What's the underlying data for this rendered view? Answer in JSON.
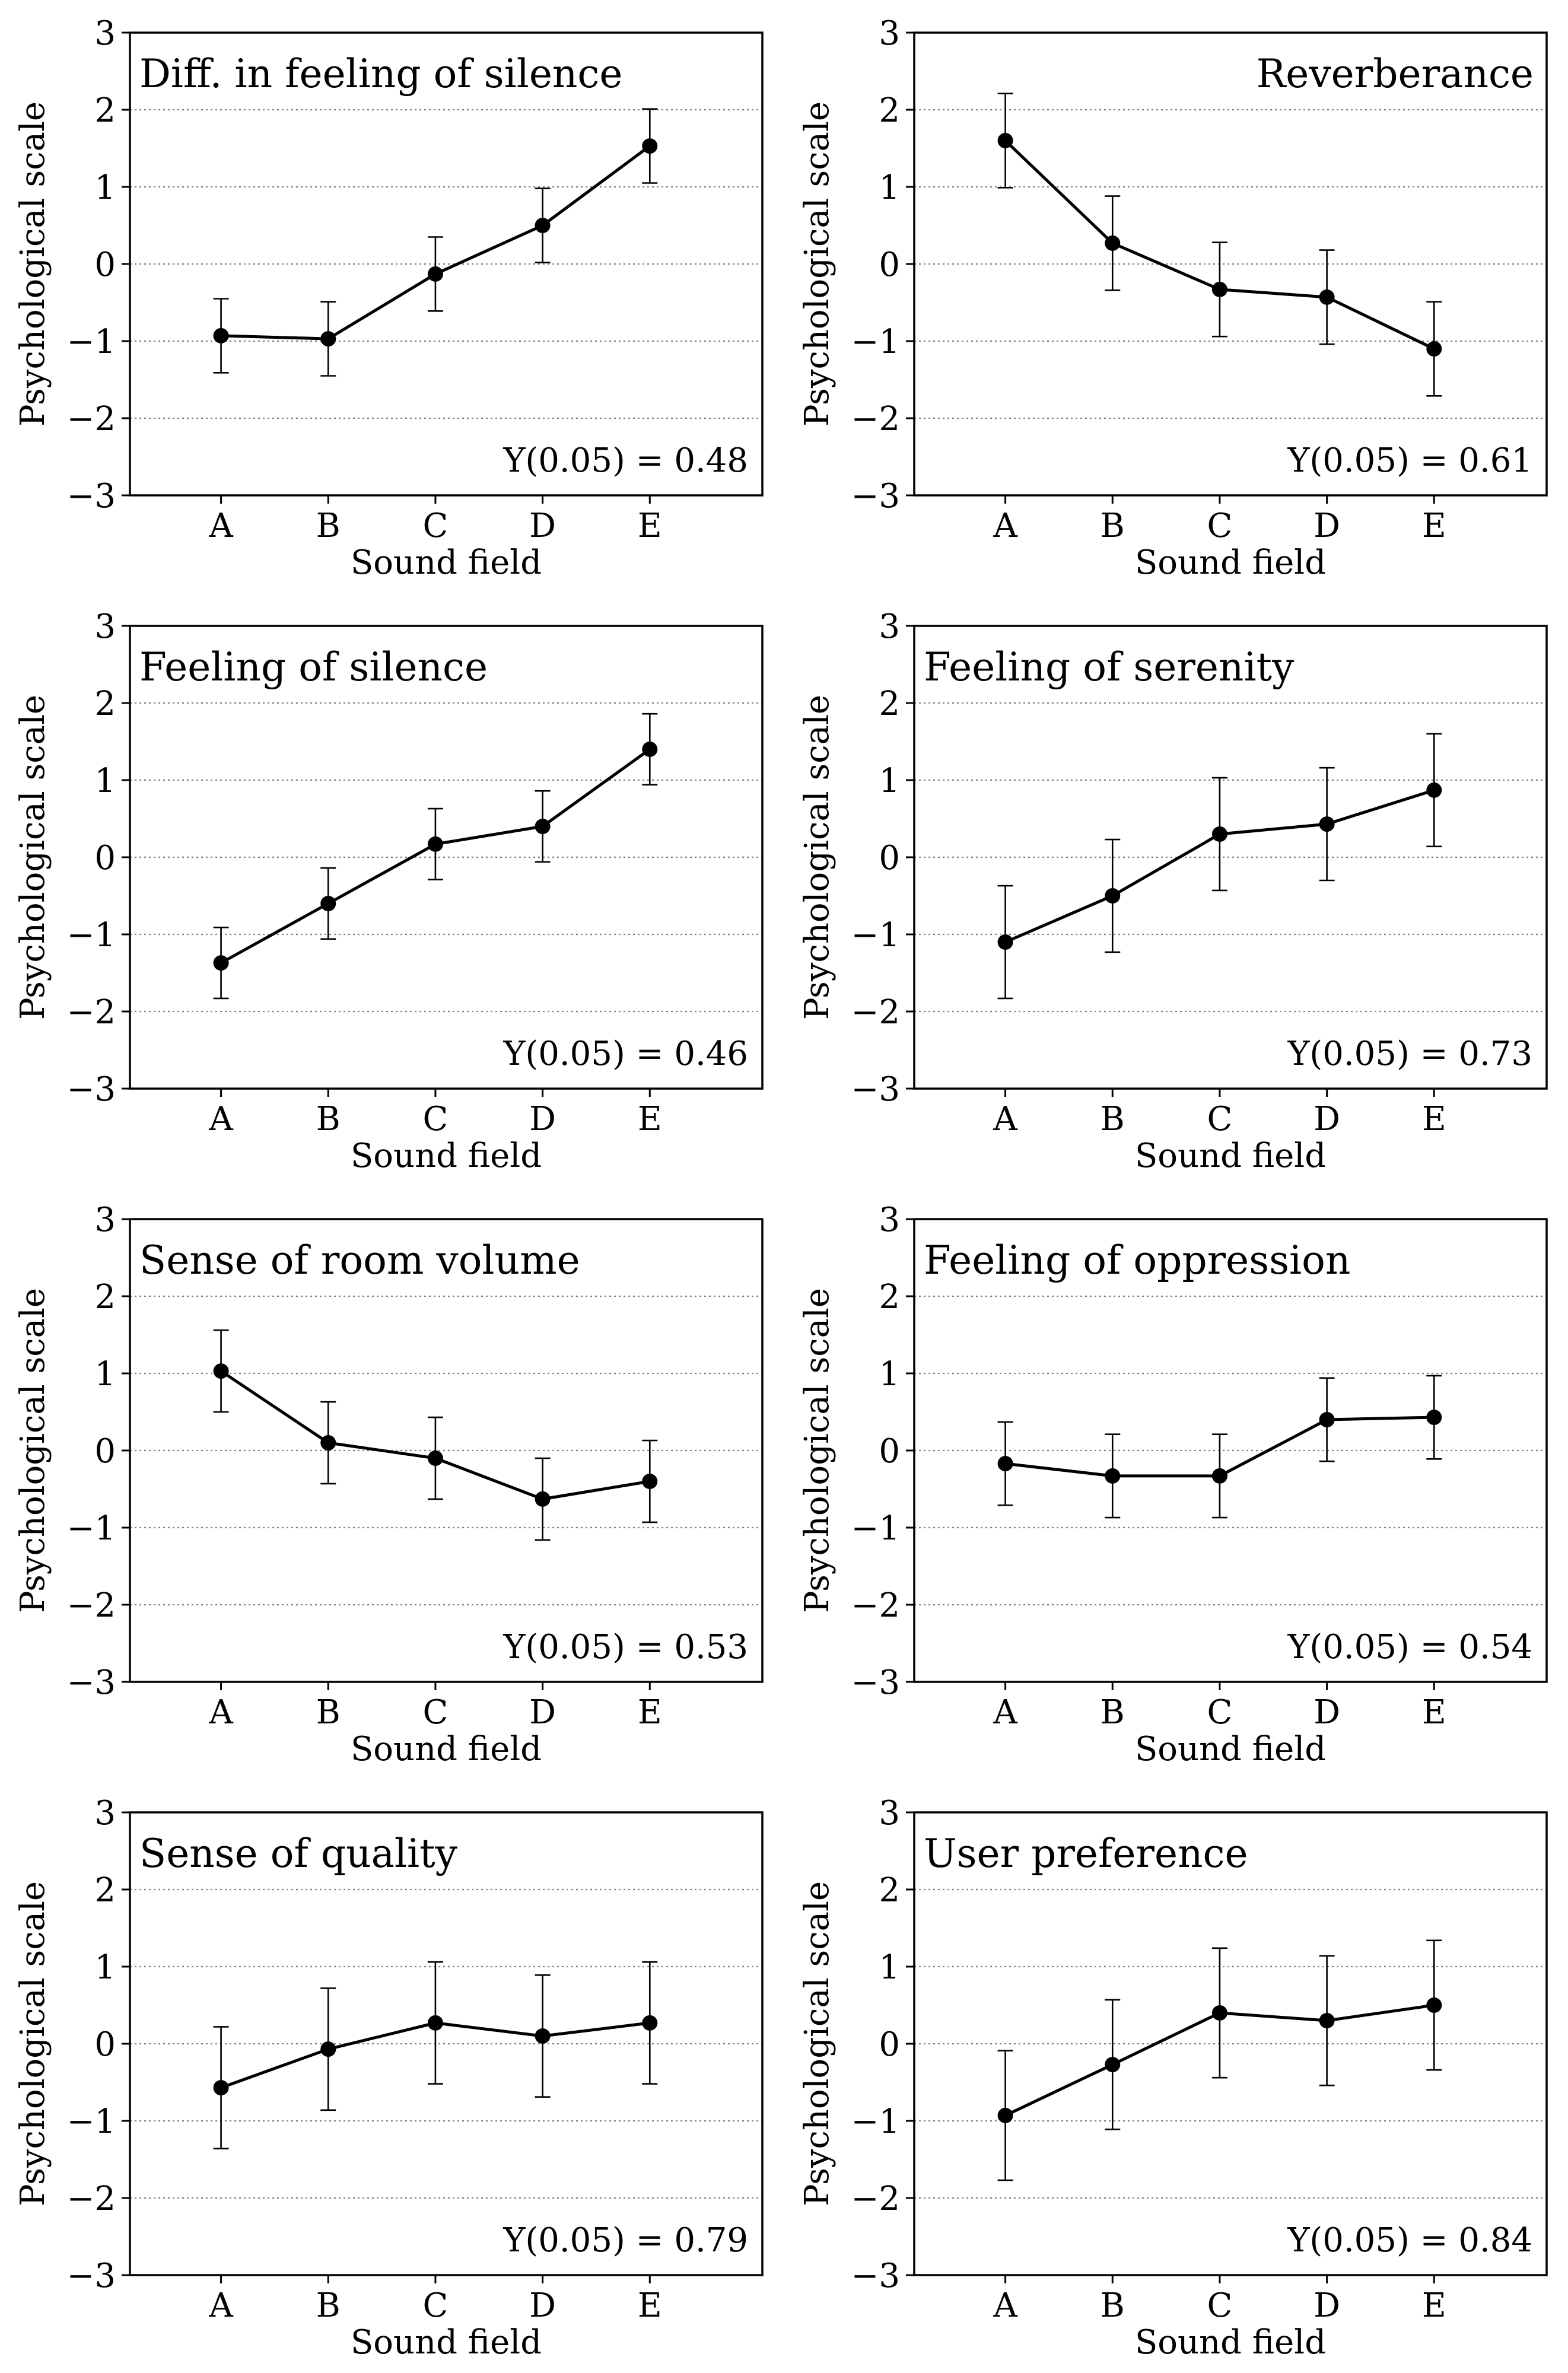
{
  "chart_data": [
    {
      "type": "line",
      "title": "Diff. in feeling of silence",
      "note": "Y(0.05) = 0.48",
      "xlabel": "Sound field",
      "ylabel": "Psychological scale",
      "categories": [
        "A",
        "B",
        "C",
        "D",
        "E"
      ],
      "values": [
        -0.93,
        -0.97,
        -0.13,
        0.5,
        1.53
      ],
      "errors": [
        0.48,
        0.48,
        0.48,
        0.48,
        0.48
      ],
      "ylim": [
        -3,
        3
      ],
      "yticks": [
        3,
        2,
        1,
        0,
        -1,
        -2,
        -3
      ],
      "ytick_labels": [
        "3",
        "2",
        "1",
        "0",
        "−1",
        "−2",
        "−3"
      ],
      "grid": true
    },
    {
      "type": "line",
      "title": "Reverberance",
      "note": "Y(0.05) = 0.61",
      "xlabel": "Sound field",
      "ylabel": "Psychological scale",
      "categories": [
        "A",
        "B",
        "C",
        "D",
        "E"
      ],
      "values": [
        1.6,
        0.27,
        -0.33,
        -0.43,
        -1.1
      ],
      "errors": [
        0.61,
        0.61,
        0.61,
        0.61,
        0.61
      ],
      "ylim": [
        -3,
        3
      ],
      "yticks": [
        3,
        2,
        1,
        0,
        -1,
        -2,
        -3
      ],
      "ytick_labels": [
        "3",
        "2",
        "1",
        "0",
        "−1",
        "−2",
        "−3"
      ],
      "grid": true
    },
    {
      "type": "line",
      "title": "Feeling of silence",
      "note": "Y(0.05) = 0.46",
      "xlabel": "Sound field",
      "ylabel": "Psychological scale",
      "categories": [
        "A",
        "B",
        "C",
        "D",
        "E"
      ],
      "values": [
        -1.37,
        -0.6,
        0.17,
        0.4,
        1.4
      ],
      "errors": [
        0.46,
        0.46,
        0.46,
        0.46,
        0.46
      ],
      "ylim": [
        -3,
        3
      ],
      "yticks": [
        3,
        2,
        1,
        0,
        -1,
        -2,
        -3
      ],
      "ytick_labels": [
        "3",
        "2",
        "1",
        "0",
        "−1",
        "−2",
        "−3"
      ],
      "grid": true
    },
    {
      "type": "line",
      "title": "Feeling of serenity",
      "note": "Y(0.05) = 0.73",
      "xlabel": "Sound field",
      "ylabel": "Psychological scale",
      "categories": [
        "A",
        "B",
        "C",
        "D",
        "E"
      ],
      "values": [
        -1.1,
        -0.5,
        0.3,
        0.43,
        0.87
      ],
      "errors": [
        0.73,
        0.73,
        0.73,
        0.73,
        0.73
      ],
      "ylim": [
        -3,
        3
      ],
      "yticks": [
        3,
        2,
        1,
        0,
        -1,
        -2,
        -3
      ],
      "ytick_labels": [
        "3",
        "2",
        "1",
        "0",
        "−1",
        "−2",
        "−3"
      ],
      "grid": true
    },
    {
      "type": "line",
      "title": "Sense of room volume",
      "note": "Y(0.05) = 0.53",
      "xlabel": "Sound field",
      "ylabel": "Psychological scale",
      "categories": [
        "A",
        "B",
        "C",
        "D",
        "E"
      ],
      "values": [
        1.03,
        0.1,
        -0.1,
        -0.63,
        -0.4
      ],
      "errors": [
        0.53,
        0.53,
        0.53,
        0.53,
        0.53
      ],
      "ylim": [
        -3,
        3
      ],
      "yticks": [
        3,
        2,
        1,
        0,
        -1,
        -2,
        -3
      ],
      "ytick_labels": [
        "3",
        "2",
        "1",
        "0",
        "−1",
        "−2",
        "−3"
      ],
      "grid": true
    },
    {
      "type": "line",
      "title": "Feeling of oppression",
      "note": "Y(0.05) = 0.54",
      "xlabel": "Sound field",
      "ylabel": "Psychological scale",
      "categories": [
        "A",
        "B",
        "C",
        "D",
        "E"
      ],
      "values": [
        -0.17,
        -0.33,
        -0.33,
        0.4,
        0.43
      ],
      "errors": [
        0.54,
        0.54,
        0.54,
        0.54,
        0.54
      ],
      "ylim": [
        -3,
        3
      ],
      "yticks": [
        3,
        2,
        1,
        0,
        -1,
        -2,
        -3
      ],
      "ytick_labels": [
        "3",
        "2",
        "1",
        "0",
        "−1",
        "−2",
        "−3"
      ],
      "grid": true
    },
    {
      "type": "line",
      "title": "Sense of quality",
      "note": "Y(0.05) = 0.79",
      "xlabel": "Sound field",
      "ylabel": "Psychological scale",
      "categories": [
        "A",
        "B",
        "C",
        "D",
        "E"
      ],
      "values": [
        -0.57,
        -0.07,
        0.27,
        0.1,
        0.27
      ],
      "errors": [
        0.79,
        0.79,
        0.79,
        0.79,
        0.79
      ],
      "ylim": [
        -3,
        3
      ],
      "yticks": [
        3,
        2,
        1,
        0,
        -1,
        -2,
        -3
      ],
      "ytick_labels": [
        "3",
        "2",
        "1",
        "0",
        "−1",
        "−2",
        "−3"
      ],
      "grid": true
    },
    {
      "type": "line",
      "title": "User preference",
      "note": "Y(0.05) = 0.84",
      "xlabel": "Sound field",
      "ylabel": "Psychological scale",
      "categories": [
        "A",
        "B",
        "C",
        "D",
        "E"
      ],
      "values": [
        -0.93,
        -0.27,
        0.4,
        0.3,
        0.5
      ],
      "errors": [
        0.84,
        0.84,
        0.84,
        0.84,
        0.84
      ],
      "ylim": [
        -3,
        3
      ],
      "yticks": [
        3,
        2,
        1,
        0,
        -1,
        -2,
        -3
      ],
      "ytick_labels": [
        "3",
        "2",
        "1",
        "0",
        "−1",
        "−2",
        "−3"
      ],
      "grid": true
    }
  ]
}
